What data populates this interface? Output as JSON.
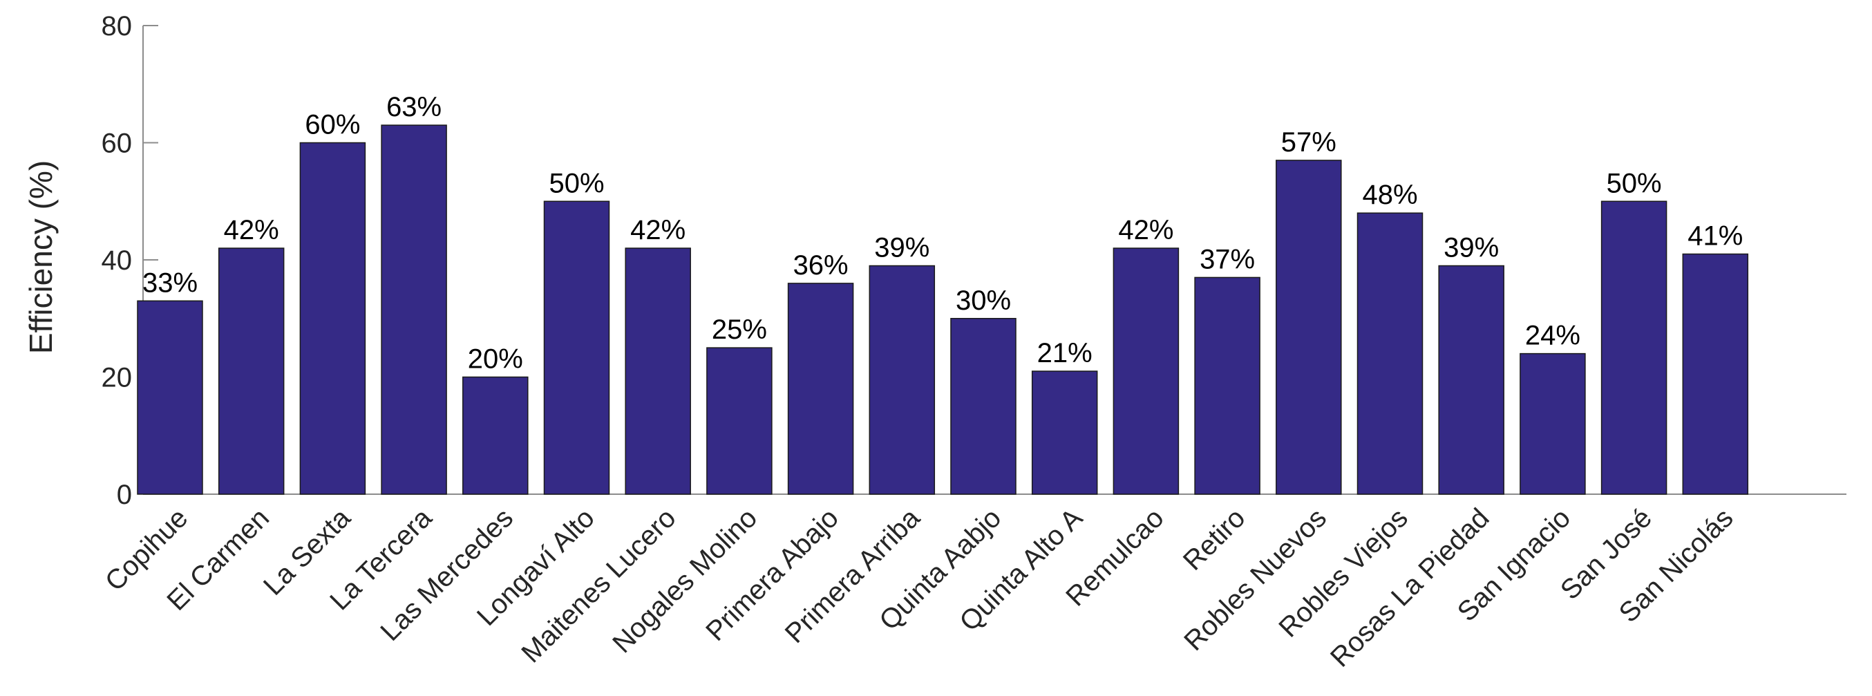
{
  "colors": {
    "bar": "#352a86",
    "axis": "#8c8c8c",
    "text": "#262626"
  },
  "chart_data": {
    "type": "bar",
    "title": "",
    "xlabel": "",
    "ylabel": "Efficiency (%)",
    "ylim": [
      0,
      80
    ],
    "yticks": [
      0,
      20,
      40,
      60,
      80
    ],
    "grid": false,
    "categories": [
      "Copihue",
      "El Carmen",
      "La Sexta",
      "La Tercera",
      "Las Mercedes",
      "Longaví Alto",
      "Maitenes Lucero",
      "Nogales Molino",
      "Primera Abajo",
      "Primera Arriba",
      "Quinta Aabjo",
      "Quinta Alto A",
      "Remulcao",
      "Retiro",
      "Robles Nuevos",
      "Robles Viejos",
      "Rosas La Piedad",
      "San Ignacio",
      "San José",
      "San Nicolás"
    ],
    "values": [
      33,
      42,
      60,
      63,
      20,
      50,
      42,
      25,
      36,
      39,
      30,
      21,
      42,
      37,
      57,
      48,
      39,
      24,
      50,
      41
    ],
    "data_labels": [
      "33%",
      "42%",
      "60%",
      "63%",
      "20%",
      "50%",
      "42%",
      "25%",
      "36%",
      "39%",
      "30%",
      "21%",
      "42%",
      "37%",
      "57%",
      "48%",
      "39%",
      "24%",
      "50%",
      "41%"
    ]
  }
}
